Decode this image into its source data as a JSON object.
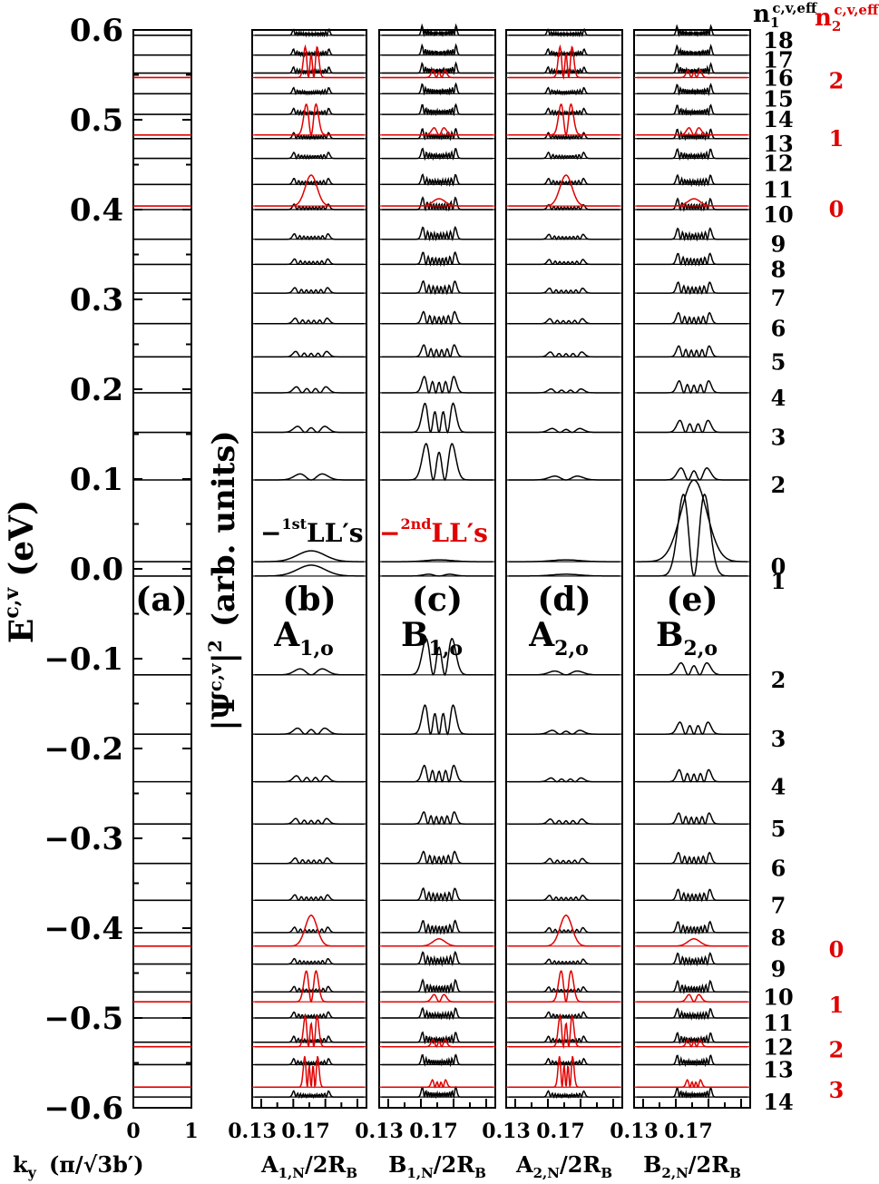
{
  "chart_data": {
    "type": "line",
    "colors": {
      "first": "#000000",
      "second": "#e00000"
    },
    "yaxis": {
      "label_main": "E",
      "label_sup": "c,v",
      "label_unit": "(eV)",
      "ylim": [
        -0.6,
        0.6
      ],
      "ticks": [
        {
          "v": 0.6,
          "t": "0.6"
        },
        {
          "v": 0.5,
          "t": "0.5"
        },
        {
          "v": 0.4,
          "t": "0.4"
        },
        {
          "v": 0.3,
          "t": "0.3"
        },
        {
          "v": 0.2,
          "t": "0.2"
        },
        {
          "v": 0.1,
          "t": "0.1"
        },
        {
          "v": 0.0,
          "t": "0.0"
        },
        {
          "v": -0.1,
          "t": "−0.1"
        },
        {
          "v": -0.2,
          "t": "−0.2"
        },
        {
          "v": -0.3,
          "t": "−0.3"
        },
        {
          "v": -0.4,
          "t": "−0.4"
        },
        {
          "v": -0.5,
          "t": "−0.5"
        },
        {
          "v": -0.6,
          "t": "−0.6"
        }
      ]
    },
    "psi_axis": {
      "label_psi": "|Ψ",
      "label_sup": "c,v",
      "label_tail": "|",
      "label_sq": "2",
      "label_unit": "(arb. units)"
    },
    "panel_a": {
      "label": "(a)",
      "xlabel_main": "k",
      "xlabel_sub": "y",
      "xlabel_unit": "(π/√3b′)",
      "xticks": [
        "0",
        "1"
      ]
    },
    "panels": [
      {
        "label": "(b)",
        "site_main": "A",
        "site_sub": "1,o",
        "xlabel_main": "A",
        "xlabel_sub": "1,N",
        "xlabel_tail": "/2R",
        "xlabel_tail_sub": "B"
      },
      {
        "label": "(c)",
        "site_main": "B",
        "site_sub": "1,o",
        "xlabel_main": "B",
        "xlabel_sub": "1,N",
        "xlabel_tail": "/2R",
        "xlabel_tail_sub": "B"
      },
      {
        "label": "(d)",
        "site_main": "A",
        "site_sub": "2,o",
        "xlabel_main": "A",
        "xlabel_sub": "2,N",
        "xlabel_tail": "/2R",
        "xlabel_tail_sub": "B"
      },
      {
        "label": "(e)",
        "site_main": "B",
        "site_sub": "2,o",
        "xlabel_main": "B",
        "xlabel_sub": "2,N",
        "xlabel_tail": "/2R",
        "xlabel_tail_sub": "B"
      }
    ],
    "panel_xticks": [
      "0.13",
      "0.17",
      "0.13",
      "0.17",
      "0.13",
      "0.17",
      "0.13",
      "0.17"
    ],
    "legend": [
      {
        "prefix": "−",
        "sup": "1st",
        "text": "LL′s",
        "color": "#000000"
      },
      {
        "prefix": "−",
        "sup": "2nd",
        "text": "LL′s",
        "color": "#e00000"
      }
    ],
    "right_headers": {
      "n1_main": "n",
      "n1_sub": "1",
      "n1_sup": "c,v,eff",
      "n2_main": "n",
      "n2_sub": "2",
      "n2_sup": "c,v,eff"
    },
    "first_levels_conduction": [
      {
        "n": "0",
        "E": 0.008
      },
      {
        "n": "2",
        "E": 0.099
      },
      {
        "n": "3",
        "E": 0.152
      },
      {
        "n": "4",
        "E": 0.196
      },
      {
        "n": "5",
        "E": 0.236
      },
      {
        "n": "6",
        "E": 0.273
      },
      {
        "n": "7",
        "E": 0.307
      },
      {
        "n": "8",
        "E": 0.339
      },
      {
        "n": "9",
        "E": 0.367
      },
      {
        "n": "10",
        "E": 0.4
      },
      {
        "n": "11",
        "E": 0.428
      },
      {
        "n": "12",
        "E": 0.457
      },
      {
        "n": "13",
        "E": 0.479
      },
      {
        "n": "14",
        "E": 0.506
      },
      {
        "n": "15",
        "E": 0.529
      },
      {
        "n": "16",
        "E": 0.552
      },
      {
        "n": "17",
        "E": 0.572
      },
      {
        "n": "18",
        "E": 0.594
      }
    ],
    "first_levels_valence": [
      {
        "n": "1",
        "E": -0.008
      },
      {
        "n": "2",
        "E": -0.118
      },
      {
        "n": "3",
        "E": -0.184
      },
      {
        "n": "4",
        "E": -0.237
      },
      {
        "n": "5",
        "E": -0.284
      },
      {
        "n": "6",
        "E": -0.328
      },
      {
        "n": "7",
        "E": -0.369
      },
      {
        "n": "8",
        "E": -0.405
      },
      {
        "n": "9",
        "E": -0.44
      },
      {
        "n": "10",
        "E": -0.471
      },
      {
        "n": "11",
        "E": -0.5
      },
      {
        "n": "12",
        "E": -0.527
      },
      {
        "n": "13",
        "E": -0.552
      },
      {
        "n": "14",
        "E": -0.588
      }
    ],
    "second_levels": [
      {
        "n": "0",
        "E": 0.404
      },
      {
        "n": "1",
        "E": 0.483
      },
      {
        "n": "2",
        "E": 0.547
      },
      {
        "n": "0",
        "E": -0.42
      },
      {
        "n": "1",
        "E": -0.482
      },
      {
        "n": "2",
        "E": -0.532
      },
      {
        "n": "3",
        "E": -0.577
      }
    ]
  }
}
